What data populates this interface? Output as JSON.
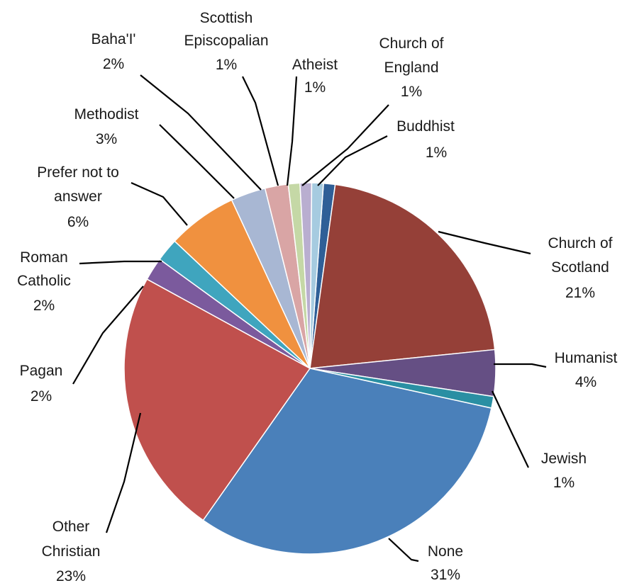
{
  "chart_data": {
    "type": "pie",
    "title": "",
    "slices": [
      {
        "label": "Buddhist",
        "value": 1,
        "pct_label": "1%",
        "color": "#2f5f97"
      },
      {
        "label": "Church of Scotland",
        "value": 21,
        "pct_label": "21%",
        "color": "#954038"
      },
      {
        "label": "Humanist",
        "value": 4,
        "pct_label": "4%",
        "color": "#654f84"
      },
      {
        "label": "Jewish",
        "value": 1,
        "pct_label": "1%",
        "color": "#2a8fa3"
      },
      {
        "label": "None",
        "value": 31,
        "pct_label": "31%",
        "color": "#4a80ba"
      },
      {
        "label": "Other Christian",
        "value": 23,
        "pct_label": "23%",
        "color": "#c0504d"
      },
      {
        "label": "Pagan",
        "value": 2,
        "pct_label": "2%",
        "color": "#7b5a9d"
      },
      {
        "label": "Roman Catholic",
        "value": 2,
        "pct_label": "2%",
        "color": "#3fa5be"
      },
      {
        "label": "Prefer not to answer",
        "value": 6,
        "pct_label": "6%",
        "color": "#f0913f"
      },
      {
        "label": "Methodist",
        "value": 3,
        "pct_label": "3%",
        "color": "#a8b7d3"
      },
      {
        "label": "Baha'I'",
        "value": 2,
        "pct_label": "2%",
        "color": "#d9a5a5"
      },
      {
        "label": "Scottish Episcopalian",
        "value": 1,
        "pct_label": "1%",
        "color": "#c5d8a6"
      },
      {
        "label": "Atheist",
        "value": 1,
        "pct_label": "1%",
        "color": "#b9aed0"
      },
      {
        "label": "Church of England",
        "value": 1,
        "pct_label": "1%",
        "color": "#a6cbe0"
      }
    ],
    "legend": "none",
    "data_labels": "outside with leader lines"
  }
}
